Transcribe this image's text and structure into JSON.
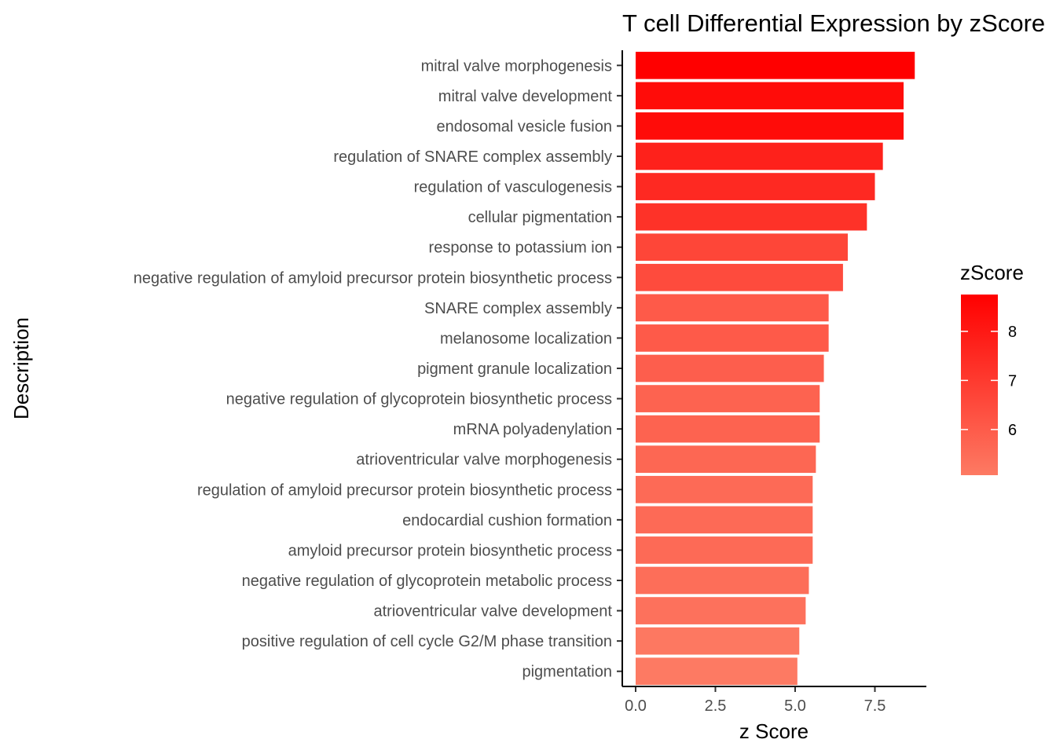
{
  "chart_data": {
    "type": "bar",
    "orientation": "horizontal",
    "title": "T cell Differential Expression by zScore",
    "xlabel": "z Score",
    "ylabel": "Description",
    "xlim": [
      -0.2,
      9.7
    ],
    "xticks": [
      0,
      2.5,
      5,
      7.5
    ],
    "xtick_labels": [
      "0.0",
      "2.5",
      "5.0",
      "7.5"
    ],
    "grid": false,
    "categories": [
      "mitral valve morphogenesis",
      "mitral valve development",
      "endosomal vesicle fusion",
      "regulation of SNARE complex assembly",
      "regulation of vasculogenesis",
      "cellular pigmentation",
      "response to potassium ion",
      "negative regulation of amyloid precursor protein biosynthetic process",
      "SNARE complex assembly",
      "melanosome localization",
      "pigment granule localization",
      "negative regulation of glycoprotein biosynthetic process",
      "mRNA polyadenylation",
      "atrioventricular valve morphogenesis",
      "regulation of amyloid precursor protein biosynthetic process",
      "endocardial cushion formation",
      "amyloid precursor protein biosynthetic process",
      "negative regulation of glycoprotein metabolic process",
      "atrioventricular valve development",
      "positive regulation of cell cycle G2/M phase transition",
      "pigmentation"
    ],
    "values": [
      8.75,
      8.4,
      8.4,
      7.75,
      7.5,
      7.25,
      6.65,
      6.5,
      6.05,
      6.05,
      5.9,
      5.77,
      5.77,
      5.65,
      5.55,
      5.55,
      5.55,
      5.43,
      5.33,
      5.13,
      5.07
    ],
    "legend": {
      "title": "zScore",
      "placement": "right",
      "ticks": [
        8,
        7,
        6
      ],
      "tick_labels": [
        "8",
        "7",
        "6"
      ],
      "range": [
        5.07,
        8.75
      ],
      "color_low": "#fd7a63",
      "color_high": "#ff0000"
    }
  }
}
